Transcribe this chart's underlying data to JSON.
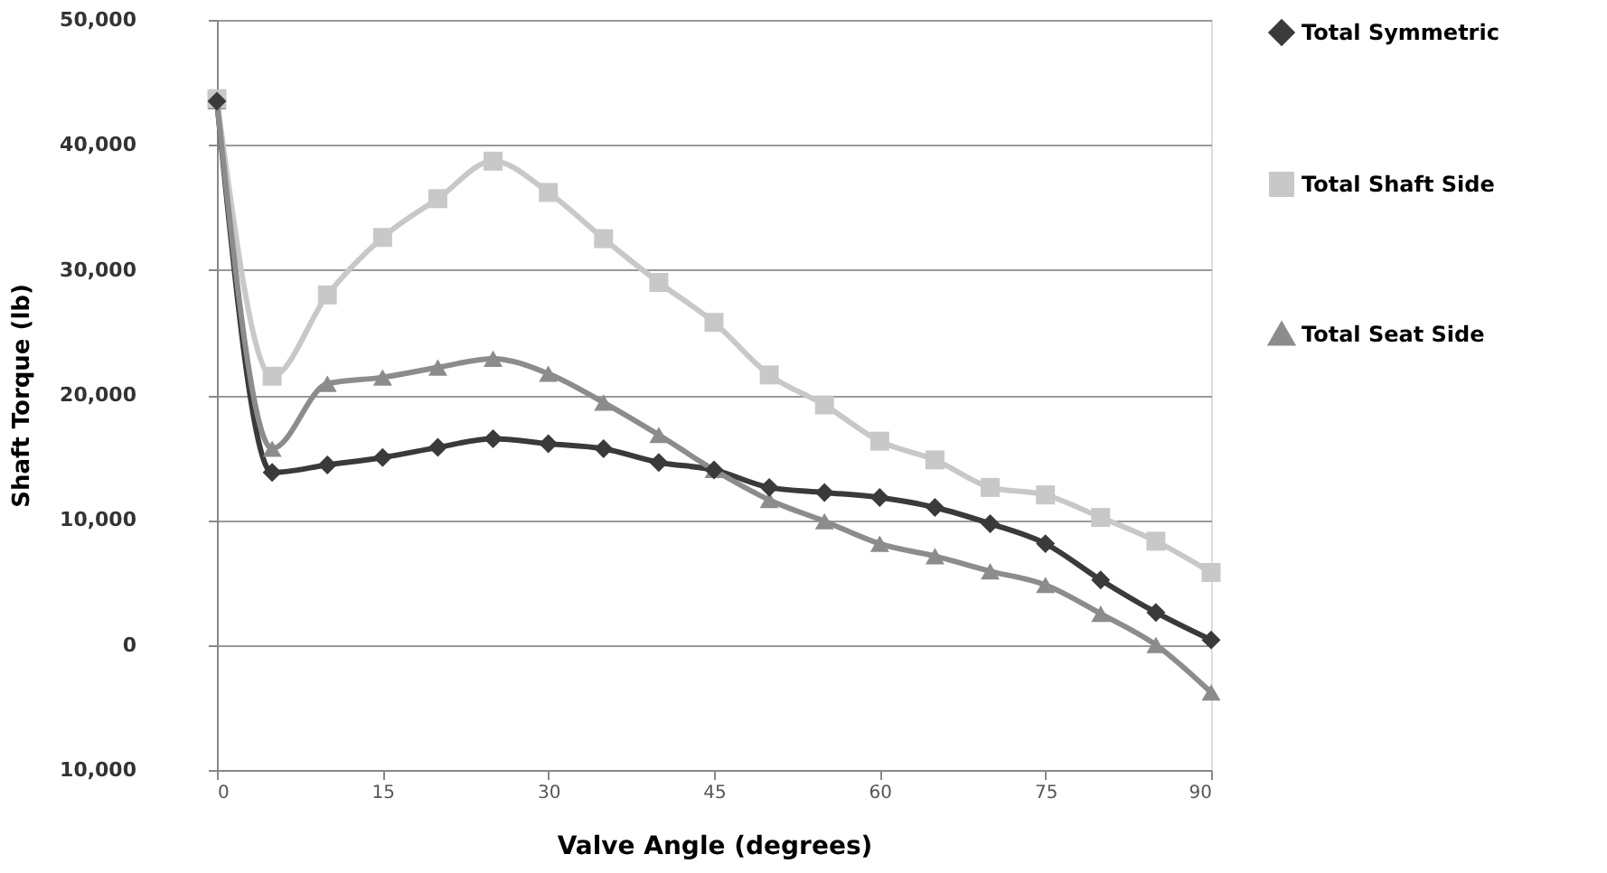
{
  "chart_data": {
    "type": "line",
    "xlabel": "Valve Angle (degrees)",
    "ylabel": "Shaft Torque (lb)",
    "x": [
      0,
      5,
      10,
      15,
      20,
      25,
      30,
      35,
      40,
      45,
      50,
      55,
      60,
      65,
      70,
      75,
      80,
      85,
      90
    ],
    "series": [
      {
        "name": "Total Symmetric",
        "color": "#3a3a3a",
        "marker": "diamond",
        "values": [
          43500,
          13800,
          14400,
          15000,
          15800,
          16500,
          16100,
          15700,
          14600,
          14000,
          12600,
          12200,
          11800,
          11000,
          9700,
          8100,
          5200,
          2600,
          400
        ]
      },
      {
        "name": "Total Shaft Side",
        "color": "#c8c8c8",
        "marker": "square",
        "values": [
          43700,
          21500,
          28000,
          32600,
          35700,
          38700,
          36200,
          32500,
          29000,
          25800,
          21600,
          19200,
          16300,
          14800,
          12600,
          12000,
          10200,
          8300,
          5800
        ]
      },
      {
        "name": "Total Seat Side",
        "color": "#8c8c8c",
        "marker": "triangle",
        "values": [
          43500,
          15700,
          20900,
          21400,
          22200,
          22900,
          21700,
          19400,
          16800,
          14000,
          11600,
          9900,
          8100,
          7100,
          5900,
          4800,
          2500,
          0,
          -3800
        ]
      }
    ],
    "xlim": [
      0,
      90
    ],
    "xticks": [
      0,
      15,
      30,
      45,
      60,
      75,
      90
    ],
    "ylim": [
      -10000,
      50000
    ],
    "yticks": [
      {
        "value": -10000,
        "label": "10,000"
      },
      0,
      {
        "value": 10000,
        "label": "10,000"
      },
      {
        "value": 20000,
        "label": "20,000"
      },
      {
        "value": 30000,
        "label": "30,000"
      },
      {
        "value": 40000,
        "label": "40,000"
      },
      {
        "value": 50000,
        "label": "50,000"
      }
    ],
    "grid": "y",
    "legend": "right",
    "line_style": "solid"
  }
}
